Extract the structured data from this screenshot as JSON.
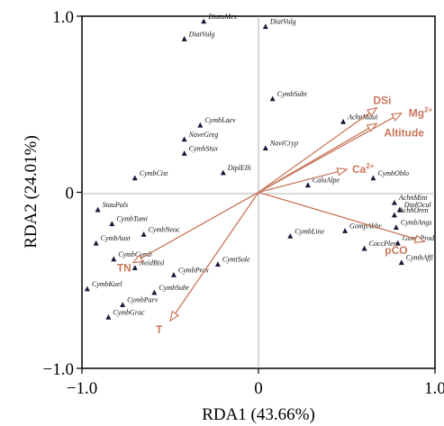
{
  "chart_data": {
    "type": "scatter",
    "xlabel": "RDA1 (43.66%)",
    "ylabel": "RDA2 (24.01%)",
    "xlim": [
      -1.0,
      1.0
    ],
    "ylim": [
      -1.0,
      1.0
    ],
    "x_ticks": [
      "−1.0",
      "0",
      "1.0"
    ],
    "y_ticks": [
      "1.0",
      "0",
      "−1.0"
    ],
    "x_tick_values": [
      -1.0,
      0,
      1.0
    ],
    "y_tick_values": [
      1.0,
      0,
      -1.0
    ],
    "grid": false,
    "zero_lines": true,
    "arrow_color": "#c8765a",
    "point_color": "#1a1a3a",
    "species": [
      {
        "name": "DiatoMes",
        "x": -0.31,
        "y": 0.97
      },
      {
        "name": "DiatVulg",
        "x": -0.42,
        "y": 0.87
      },
      {
        "name": "DiatVulg",
        "x": 0.04,
        "y": 0.94
      },
      {
        "name": "CymbSubt",
        "x": 0.08,
        "y": 0.53
      },
      {
        "name": "AchnMaui",
        "x": 0.48,
        "y": 0.4
      },
      {
        "name": "CymbLaev",
        "x": -0.33,
        "y": 0.38
      },
      {
        "name": "NaveGreg",
        "x": -0.42,
        "y": 0.3
      },
      {
        "name": "NaviCryp",
        "x": 0.04,
        "y": 0.25
      },
      {
        "name": "CymbStux",
        "x": -0.42,
        "y": 0.22
      },
      {
        "name": "DiplElli",
        "x": -0.2,
        "y": 0.11
      },
      {
        "name": "CymbCist",
        "x": -0.7,
        "y": 0.08
      },
      {
        "name": "CymbOblo",
        "x": 0.65,
        "y": 0.08
      },
      {
        "name": "CaloAlpe",
        "x": 0.28,
        "y": 0.04
      },
      {
        "name": "AchnMint",
        "x": 0.77,
        "y": -0.06
      },
      {
        "name": "DiplOcul",
        "x": 0.8,
        "y": -0.1
      },
      {
        "name": "AchnOren",
        "x": 0.77,
        "y": -0.13
      },
      {
        "name": "StauPals",
        "x": -0.91,
        "y": -0.1
      },
      {
        "name": "CymbTumi",
        "x": -0.83,
        "y": -0.18
      },
      {
        "name": "CymbNeoc",
        "x": -0.65,
        "y": -0.24
      },
      {
        "name": "CymbAust",
        "x": -0.92,
        "y": -0.29
      },
      {
        "name": "CymbLine",
        "x": 0.18,
        "y": -0.25
      },
      {
        "name": "GompAbbr",
        "x": 0.49,
        "y": -0.22
      },
      {
        "name": "CymbAngs",
        "x": 0.78,
        "y": -0.2
      },
      {
        "name": "GompProd",
        "x": 0.79,
        "y": -0.29
      },
      {
        "name": "CoccPlen",
        "x": 0.6,
        "y": -0.32
      },
      {
        "name": "CymbCymb",
        "x": -0.82,
        "y": -0.38
      },
      {
        "name": "NeidBisl",
        "x": -0.7,
        "y": -0.43
      },
      {
        "name": "CymtSole",
        "x": -0.23,
        "y": -0.41
      },
      {
        "name": "CymbProx",
        "x": -0.48,
        "y": -0.47
      },
      {
        "name": "CymbAffi",
        "x": 0.81,
        "y": -0.4
      },
      {
        "name": "CymbKuel",
        "x": -0.97,
        "y": -0.55
      },
      {
        "name": "CymbSubr",
        "x": -0.59,
        "y": -0.57
      },
      {
        "name": "CymbParv",
        "x": -0.77,
        "y": -0.64
      },
      {
        "name": "CymbGrac",
        "x": -0.85,
        "y": -0.71
      }
    ],
    "env_vectors": [
      {
        "name": "DSi",
        "sup": "",
        "x": 0.67,
        "y": 0.48
      },
      {
        "name": "Mg",
        "sup": "2+",
        "x": 0.81,
        "y": 0.45
      },
      {
        "name": "Altitude",
        "sup": "",
        "x": 0.67,
        "y": 0.39
      },
      {
        "name": "Ca",
        "sup": "2+",
        "x": 0.5,
        "y": 0.13
      },
      {
        "name": "pCO",
        "sup": "",
        "x": 0.94,
        "y": -0.28
      },
      {
        "name": "TN",
        "sup": "",
        "x": -0.71,
        "y": -0.4
      },
      {
        "name": "T",
        "sup": "",
        "x": -0.5,
        "y": -0.73
      }
    ]
  }
}
